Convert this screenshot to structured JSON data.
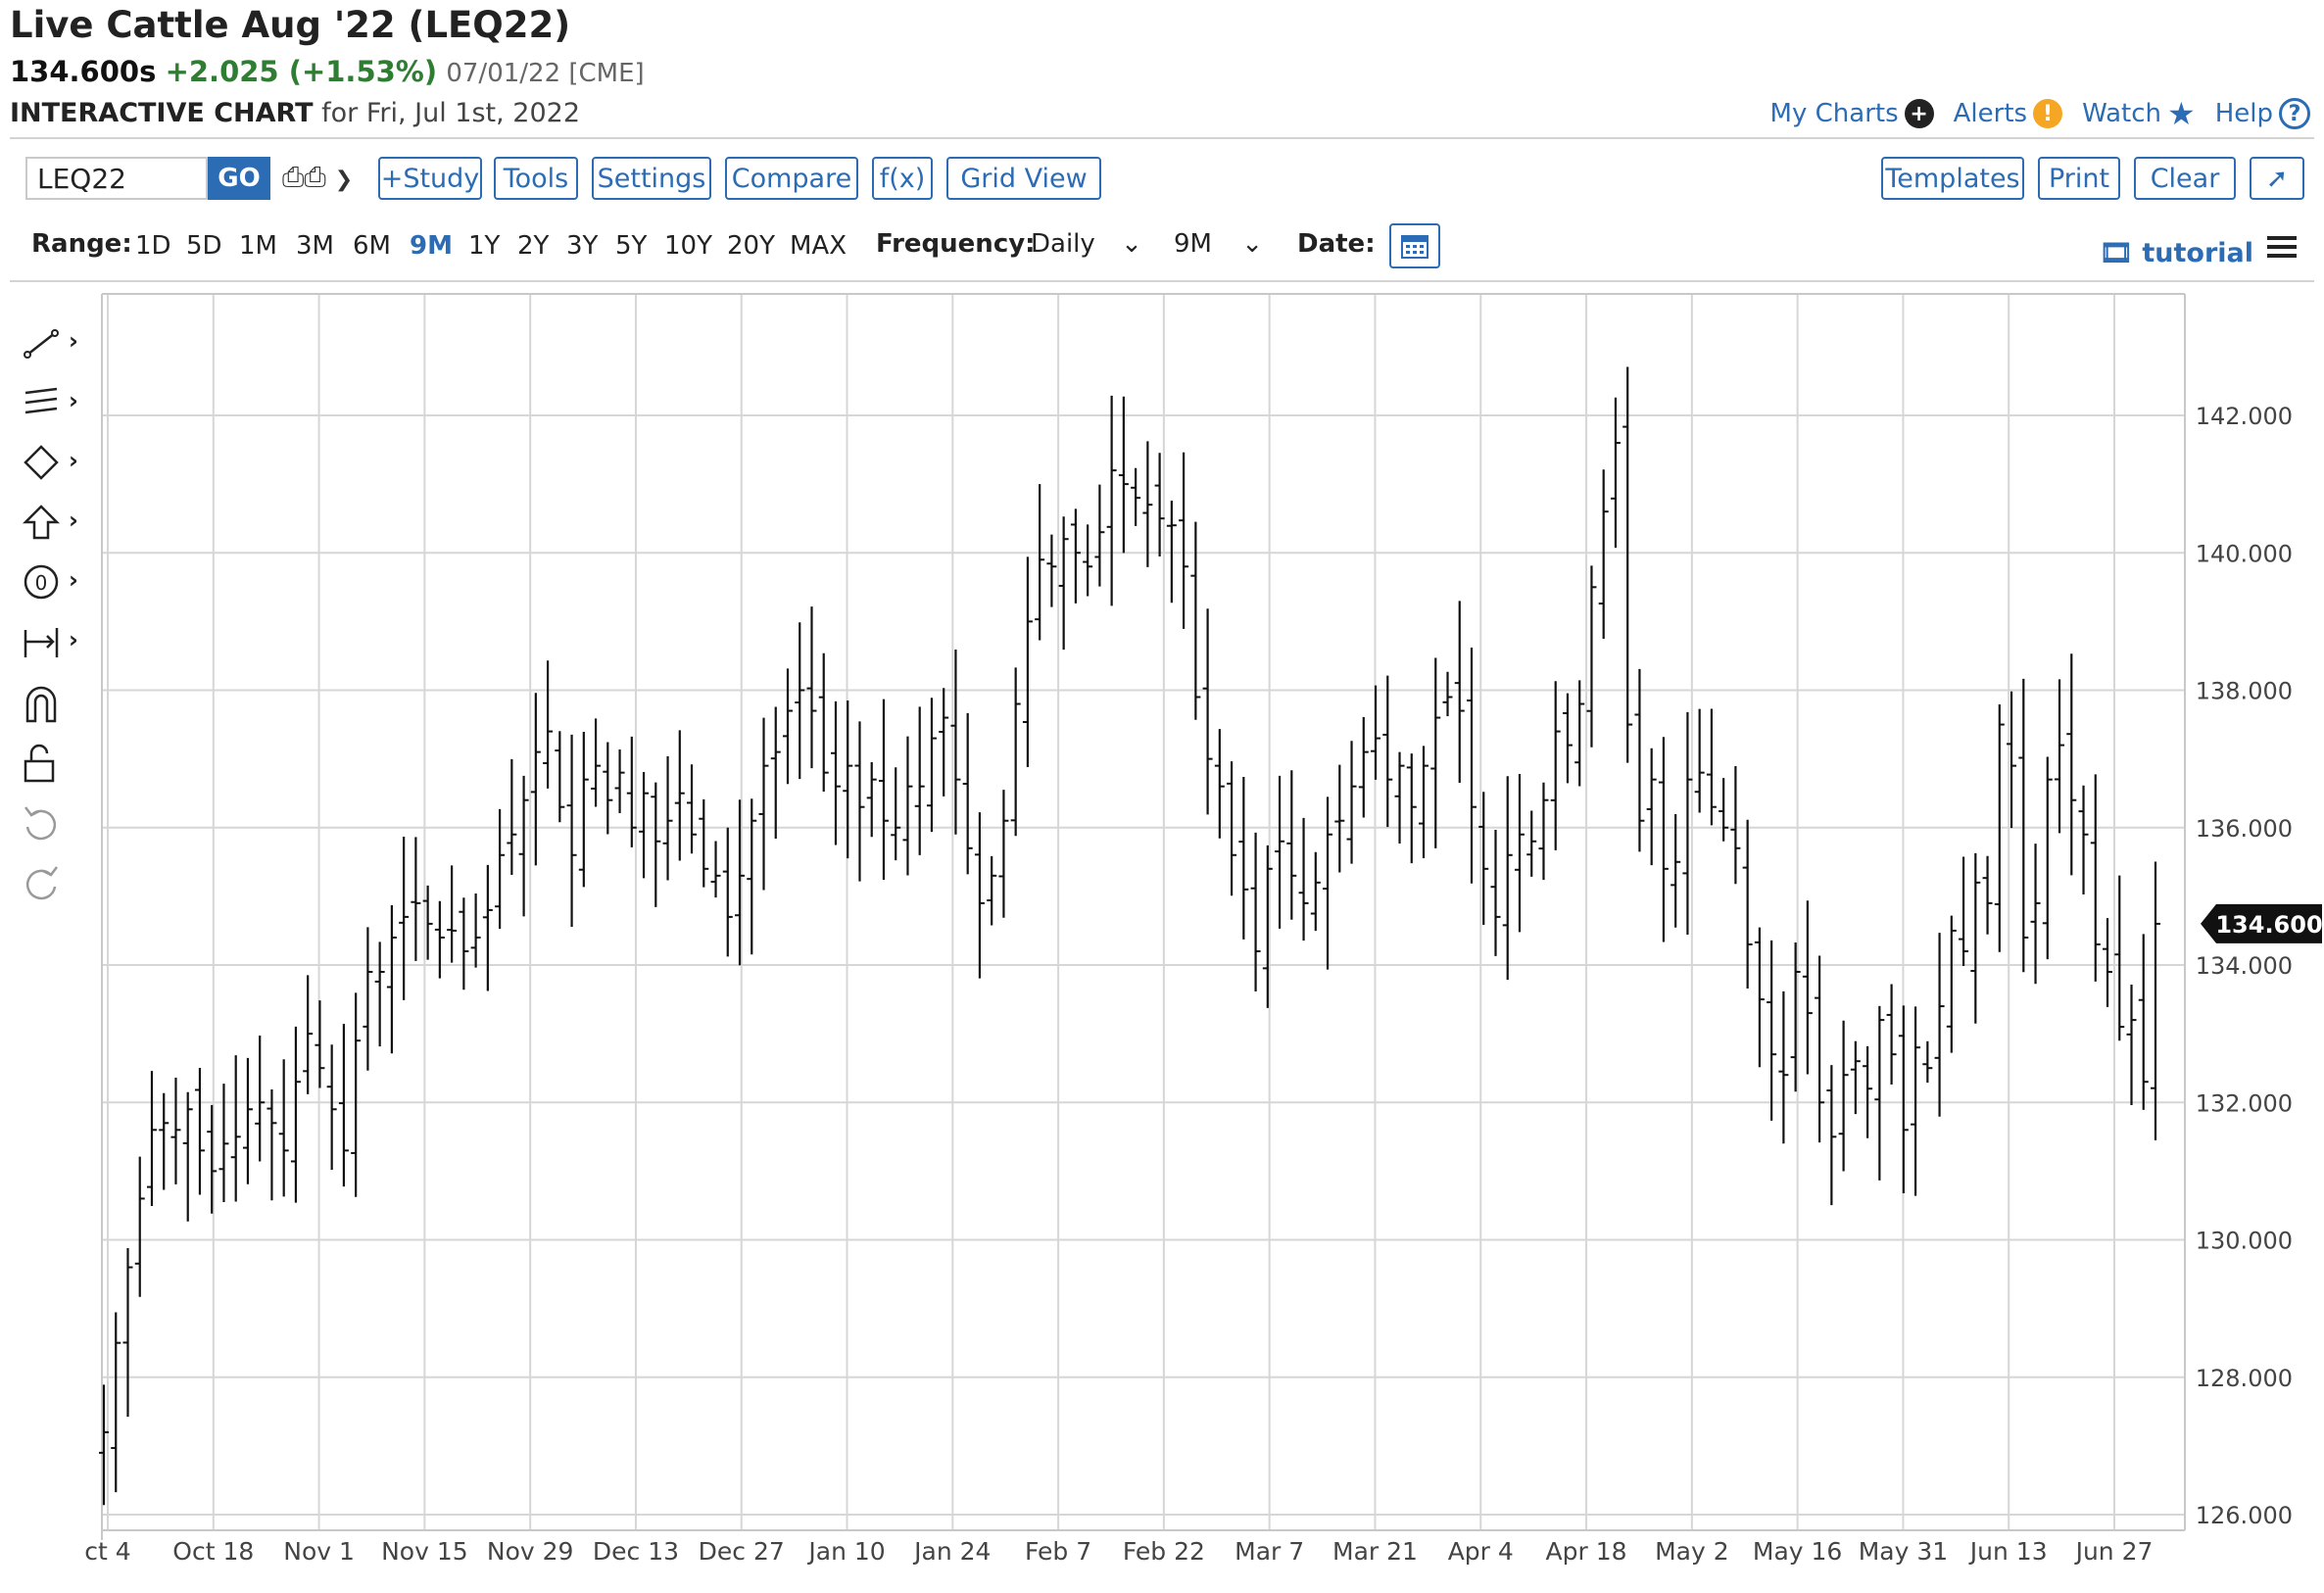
{
  "header": {
    "title": "Live Cattle Aug '22 (LEQ22)",
    "last": "134.600s",
    "change": "+2.025 (+1.53%)",
    "date_exchange": "07/01/22 [CME]",
    "interactive_label": "INTERACTIVE CHART",
    "for_date": "for Fri, Jul 1st, 2022"
  },
  "top_links": {
    "my_charts": "My Charts",
    "alerts": "Alerts",
    "watch": "Watch",
    "help": "Help"
  },
  "toolbar": {
    "symbol": "LEQ22",
    "go": "GO",
    "study": "+Study",
    "tools": "Tools",
    "settings": "Settings",
    "compare": "Compare",
    "fx": "f(x)",
    "grid_view": "Grid View",
    "templates": "Templates",
    "print": "Print",
    "clear": "Clear"
  },
  "range_bar": {
    "range_label": "Range:",
    "ranges": [
      "1D",
      "5D",
      "1M",
      "3M",
      "6M",
      "9M",
      "1Y",
      "2Y",
      "3Y",
      "5Y",
      "10Y",
      "20Y",
      "MAX"
    ],
    "active_range": "9M",
    "frequency_label": "Frequency:",
    "frequency": "Daily",
    "period": "9M",
    "date_label": "Date:",
    "tutorial": "tutorial"
  },
  "colors": {
    "accent": "#2b6cb5",
    "positive": "#2e7d32",
    "alerts_badge": "#f5a623",
    "bars": "#111111",
    "grid": "#d6d6d6"
  },
  "chart_data": {
    "type": "ohlc-bar",
    "symbol": "LEQ22",
    "frequency": "Daily",
    "x_tick_labels": [
      "ct 4",
      "Oct 18",
      "Nov 1",
      "Nov 15",
      "Nov 29",
      "Dec 13",
      "Dec 27",
      "Jan 10",
      "Jan 24",
      "Feb 7",
      "Feb 22",
      "Mar 7",
      "Mar 21",
      "Apr 4",
      "Apr 18",
      "May 2",
      "May 16",
      "May 31",
      "Jun 13",
      "Jun 27"
    ],
    "y_tick_labels": [
      "142.000",
      "140.000",
      "138.000",
      "136.000",
      "134.000",
      "132.000",
      "130.000",
      "128.000",
      "126.000"
    ],
    "ylim": [
      125.8,
      143.5
    ],
    "last_price_label": "134.600",
    "close": [
      127.2,
      128.5,
      129.6,
      130.6,
      131.6,
      131.7,
      131.6,
      131.9,
      131.3,
      131.0,
      131.4,
      131.5,
      131.9,
      132.0,
      131.7,
      131.3,
      132.3,
      133.0,
      132.5,
      131.9,
      131.3,
      132.9,
      133.9,
      133.9,
      134.4,
      134.7,
      134.9,
      134.6,
      134.4,
      134.5,
      134.2,
      134.4,
      134.8,
      135.6,
      135.9,
      136.4,
      137.1,
      137.4,
      136.3,
      135.6,
      136.7,
      136.9,
      136.4,
      136.8,
      136.0,
      136.5,
      135.8,
      136.1,
      136.5,
      135.9,
      135.4,
      135.3,
      134.7,
      135.3,
      136.1,
      136.9,
      137.1,
      137.7,
      138.0,
      137.7,
      136.8,
      136.6,
      136.9,
      136.3,
      136.7,
      136.1,
      136.0,
      136.6,
      136.6,
      137.3,
      137.6,
      136.7,
      135.7,
      134.9,
      135.3,
      136.1,
      137.8,
      139.0,
      139.9,
      139.8,
      140.2,
      140.0,
      139.8,
      140.3,
      141.2,
      141.0,
      140.8,
      140.7,
      140.5,
      140.4,
      139.8,
      137.9,
      137.0,
      136.6,
      135.6,
      135.1,
      134.2,
      135.4,
      135.8,
      135.3,
      134.9,
      135.2,
      135.9,
      136.1,
      136.6,
      137.1,
      137.3,
      136.7,
      136.9,
      136.3,
      136.9,
      137.6,
      137.9,
      137.7,
      136.3,
      135.4,
      134.7,
      135.6,
      135.9,
      135.8,
      136.4,
      137.4,
      137.2,
      137.8,
      139.5,
      140.6,
      141.6,
      137.5,
      136.1,
      136.7,
      135.4,
      135.5,
      136.7,
      136.8,
      136.3,
      136.0,
      135.7,
      134.3,
      133.5,
      132.7,
      132.4,
      133.9,
      133.3,
      132.0,
      131.5,
      132.4,
      132.6,
      132.2,
      133.2,
      132.7,
      131.6,
      132.8,
      132.5,
      133.4,
      134.5,
      134.2,
      135.2,
      134.9,
      137.5,
      136.9,
      134.4,
      134.9,
      136.7,
      137.2,
      136.4,
      135.9,
      134.3,
      133.9,
      133.1,
      133.2,
      132.3,
      134.6
    ]
  }
}
